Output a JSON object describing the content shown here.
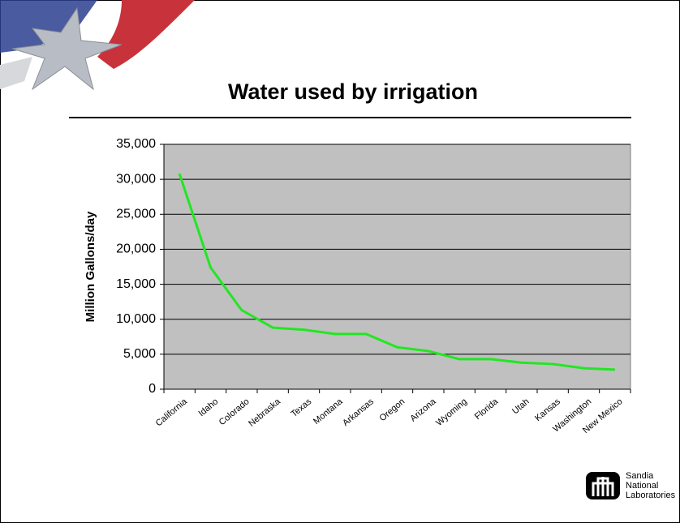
{
  "chart_data": {
    "type": "line",
    "title": "Water used by irrigation",
    "y_label": "Million Gallons/day",
    "categories": [
      "California",
      "Idaho",
      "Colorado",
      "Nebraska",
      "Texas",
      "Montana",
      "Arkansas",
      "Oregon",
      "Arizona",
      "Wyoming",
      "Florida",
      "Utah",
      "Kansas",
      "Washington",
      "New Mexico"
    ],
    "series": [
      {
        "color": "#22e622",
        "values": [
          30800,
          17400,
          11300,
          8800,
          8500,
          7900,
          7900,
          6000,
          5450,
          4300,
          4300,
          3800,
          3600,
          3000,
          2800
        ]
      }
    ],
    "ylim": [
      0,
      35000
    ],
    "yticks": [
      0,
      {
        "value": 5000,
        "label": "5,000"
      },
      {
        "value": 10000,
        "label": "10,000"
      },
      {
        "value": 15000,
        "label": "15,000"
      },
      {
        "value": 20000,
        "label": "20,000"
      },
      {
        "value": 25000,
        "label": "25,000"
      },
      {
        "value": 30000,
        "label": "30,000"
      },
      {
        "value": 35000,
        "label": "35,000"
      }
    ],
    "grid": true,
    "plot_background": "#c0c0c0"
  },
  "logo_text": [
    "Sandia",
    "National",
    "Laboratories"
  ]
}
